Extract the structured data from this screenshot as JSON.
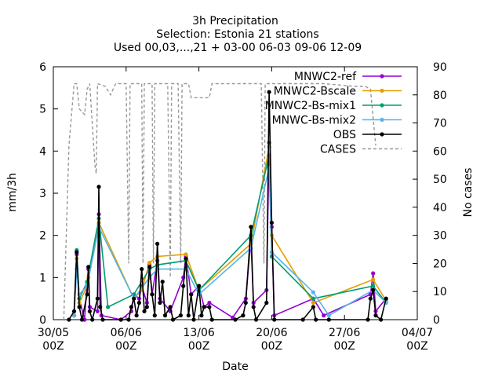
{
  "chart_data": {
    "type": "line",
    "title_lines": [
      "3h Precipitation",
      "Selection: Estonia     21 stations",
      "Used 00,03,...,21 + 03-00 06-03 09-06 12-09"
    ],
    "xlabel": "Date",
    "ylabel": "mm/3h",
    "y2label": "No cases",
    "xlim": [
      "2023-05-30",
      "2023-07-04"
    ],
    "ylim": [
      0,
      6
    ],
    "y2lim": [
      0,
      90
    ],
    "x_ticks": [
      {
        "date": "2023-05-30",
        "label": [
          "30/05",
          "00Z"
        ]
      },
      {
        "date": "2023-06-06",
        "label": [
          "06/06",
          "00Z"
        ]
      },
      {
        "date": "2023-06-13",
        "label": [
          "13/06",
          "00Z"
        ]
      },
      {
        "date": "2023-06-20",
        "label": [
          "20/06",
          "00Z"
        ]
      },
      {
        "date": "2023-06-27",
        "label": [
          "27/06",
          "00Z"
        ]
      },
      {
        "date": "2023-07-04",
        "label": [
          "04/07",
          "00Z"
        ]
      }
    ],
    "y_ticks": [
      "0",
      "1",
      "2",
      "3",
      "4",
      "5",
      "6"
    ],
    "y2_ticks": [
      "0",
      "10",
      "20",
      "30",
      "40",
      "50",
      "60",
      "70",
      "80",
      "90"
    ],
    "legend_position": "top-right",
    "series": [
      {
        "name": "MNWC2-ref",
        "color": "#9400d3",
        "axis": "y",
        "points": [
          [
            "2023-06-01T00",
            0.1
          ],
          [
            "2023-06-01T06",
            1.55
          ],
          [
            "2023-06-01T12",
            0.5
          ],
          [
            "2023-06-02T00",
            0.0
          ],
          [
            "2023-06-02T06",
            0.9
          ],
          [
            "2023-06-02T09",
            1.2
          ],
          [
            "2023-06-02T12",
            0.3
          ],
          [
            "2023-06-03T06",
            0.2
          ],
          [
            "2023-06-03T09",
            2.5
          ],
          [
            "2023-06-03T15",
            0.1
          ],
          [
            "2023-06-05T12",
            0.0
          ],
          [
            "2023-06-06T12",
            0.2
          ],
          [
            "2023-06-06T18",
            0.6
          ],
          [
            "2023-06-07T06",
            0.5
          ],
          [
            "2023-06-07T12",
            0.8
          ],
          [
            "2023-06-08T00",
            0.4
          ],
          [
            "2023-06-08T06",
            1.3
          ],
          [
            "2023-06-08T12",
            0.6
          ],
          [
            "2023-06-09T00",
            1.4
          ],
          [
            "2023-06-09T06",
            0.5
          ],
          [
            "2023-06-10T06",
            0.2
          ],
          [
            "2023-06-11T12",
            1.0
          ],
          [
            "2023-06-11T18",
            1.5
          ],
          [
            "2023-06-12T06",
            0.6
          ],
          [
            "2023-06-13T00",
            0.8
          ],
          [
            "2023-06-13T12",
            0.3
          ],
          [
            "2023-06-14T00",
            0.4
          ],
          [
            "2023-06-16T06",
            0.05
          ],
          [
            "2023-06-17T12",
            0.5
          ],
          [
            "2023-06-18T00",
            1.9
          ],
          [
            "2023-06-18T06",
            0.4
          ],
          [
            "2023-06-19T12",
            0.7
          ],
          [
            "2023-06-19T18",
            4.2
          ],
          [
            "2023-06-20T00",
            2.2
          ],
          [
            "2023-06-20T06",
            0.1
          ],
          [
            "2023-06-24T00",
            0.5
          ],
          [
            "2023-06-25T00",
            0.1
          ],
          [
            "2023-06-29T12",
            0.6
          ],
          [
            "2023-06-29T18",
            1.1
          ],
          [
            "2023-06-30T00",
            0.2
          ],
          [
            "2023-07-01T00",
            0.5
          ]
        ]
      },
      {
        "name": "MNWC2-Bscale",
        "color": "#e69f00",
        "axis": "y",
        "points": [
          [
            "2023-06-01T00",
            0.1
          ],
          [
            "2023-06-01T06",
            1.45
          ],
          [
            "2023-06-01T12",
            0.4
          ],
          [
            "2023-06-02T06",
            0.8
          ],
          [
            "2023-06-02T09",
            1.0
          ],
          [
            "2023-06-03T09",
            2.3
          ],
          [
            "2023-06-06T18",
            0.5
          ],
          [
            "2023-06-07T12",
            0.7
          ],
          [
            "2023-06-08T06",
            1.35
          ],
          [
            "2023-06-09T00",
            1.5
          ],
          [
            "2023-06-11T18",
            1.55
          ],
          [
            "2023-06-13T00",
            0.7
          ],
          [
            "2023-06-18T00",
            1.8
          ],
          [
            "2023-06-19T18",
            4.1
          ],
          [
            "2023-06-20T00",
            2.0
          ],
          [
            "2023-06-24T00",
            0.4
          ],
          [
            "2023-06-29T18",
            0.95
          ],
          [
            "2023-07-01T00",
            0.45
          ]
        ]
      },
      {
        "name": "MNWC2-Bs-mix1",
        "color": "#009e73",
        "axis": "y",
        "points": [
          [
            "2023-06-01T00",
            0.1
          ],
          [
            "2023-06-01T06",
            1.65
          ],
          [
            "2023-06-01T12",
            0.5
          ],
          [
            "2023-06-02T06",
            0.9
          ],
          [
            "2023-06-03T09",
            2.4
          ],
          [
            "2023-06-04T06",
            0.3
          ],
          [
            "2023-06-06T18",
            0.6
          ],
          [
            "2023-06-08T06",
            1.2
          ],
          [
            "2023-06-09T00",
            1.3
          ],
          [
            "2023-06-11T18",
            1.4
          ],
          [
            "2023-06-13T00",
            0.7
          ],
          [
            "2023-06-18T00",
            2.0
          ],
          [
            "2023-06-19T18",
            3.9
          ],
          [
            "2023-06-20T00",
            1.5
          ],
          [
            "2023-06-24T00",
            0.5
          ],
          [
            "2023-06-29T18",
            0.8
          ],
          [
            "2023-07-01T00",
            0.4
          ]
        ]
      },
      {
        "name": "MNWC-Bs-mix2",
        "color": "#56b4e9",
        "axis": "y",
        "points": [
          [
            "2023-06-01T00",
            0.1
          ],
          [
            "2023-06-01T06",
            1.2
          ],
          [
            "2023-06-01T12",
            0.6
          ],
          [
            "2023-06-02T06",
            0.8
          ],
          [
            "2023-06-03T09",
            2.2
          ],
          [
            "2023-06-06T18",
            0.5
          ],
          [
            "2023-06-08T06",
            1.0
          ],
          [
            "2023-06-09T00",
            1.2
          ],
          [
            "2023-06-11T18",
            1.2
          ],
          [
            "2023-06-13T00",
            0.6
          ],
          [
            "2023-06-18T00",
            1.7
          ],
          [
            "2023-06-19T18",
            3.6
          ],
          [
            "2023-06-20T00",
            1.6
          ],
          [
            "2023-06-24T00",
            0.65
          ],
          [
            "2023-06-25T12",
            0.1
          ],
          [
            "2023-06-29T18",
            0.7
          ],
          [
            "2023-07-01T00",
            0.4
          ]
        ]
      },
      {
        "name": "OBS",
        "color": "#000000",
        "axis": "y",
        "points": [
          [
            "2023-05-31T12",
            0.0
          ],
          [
            "2023-06-01T00",
            0.2
          ],
          [
            "2023-06-01T06",
            1.6
          ],
          [
            "2023-06-01T12",
            0.3
          ],
          [
            "2023-06-01T18",
            0.0
          ],
          [
            "2023-06-02T06",
            0.6
          ],
          [
            "2023-06-02T09",
            1.25
          ],
          [
            "2023-06-02T12",
            0.2
          ],
          [
            "2023-06-02T18",
            0.0
          ],
          [
            "2023-06-03T06",
            0.5
          ],
          [
            "2023-06-03T09",
            3.15
          ],
          [
            "2023-06-03T12",
            0.3
          ],
          [
            "2023-06-03T18",
            0.0
          ],
          [
            "2023-06-05T12",
            0.0
          ],
          [
            "2023-06-06T06",
            0.0
          ],
          [
            "2023-06-06T12",
            0.3
          ],
          [
            "2023-06-06T18",
            0.5
          ],
          [
            "2023-06-07T00",
            0.1
          ],
          [
            "2023-06-07T06",
            0.4
          ],
          [
            "2023-06-07T12",
            1.2
          ],
          [
            "2023-06-07T18",
            0.2
          ],
          [
            "2023-06-08T00",
            0.3
          ],
          [
            "2023-06-08T06",
            1.25
          ],
          [
            "2023-06-08T12",
            0.6
          ],
          [
            "2023-06-08T18",
            0.1
          ],
          [
            "2023-06-09T00",
            1.8
          ],
          [
            "2023-06-09T06",
            0.4
          ],
          [
            "2023-06-09T12",
            0.9
          ],
          [
            "2023-06-09T18",
            0.1
          ],
          [
            "2023-06-10T06",
            0.3
          ],
          [
            "2023-06-10T12",
            0.0
          ],
          [
            "2023-06-11T06",
            0.1
          ],
          [
            "2023-06-11T12",
            0.8
          ],
          [
            "2023-06-11T18",
            1.45
          ],
          [
            "2023-06-12T00",
            0.1
          ],
          [
            "2023-06-12T06",
            0.6
          ],
          [
            "2023-06-12T12",
            0.0
          ],
          [
            "2023-06-13T00",
            0.8
          ],
          [
            "2023-06-13T06",
            0.1
          ],
          [
            "2023-06-13T12",
            0.3
          ],
          [
            "2023-06-14T00",
            0.3
          ],
          [
            "2023-06-14T06",
            0.0
          ],
          [
            "2023-06-16T12",
            0.0
          ],
          [
            "2023-06-17T06",
            0.1
          ],
          [
            "2023-06-17T12",
            0.4
          ],
          [
            "2023-06-18T00",
            2.2
          ],
          [
            "2023-06-18T06",
            0.3
          ],
          [
            "2023-06-18T12",
            0.0
          ],
          [
            "2023-06-19T12",
            0.4
          ],
          [
            "2023-06-19T18",
            5.4
          ],
          [
            "2023-06-20T00",
            2.3
          ],
          [
            "2023-06-20T06",
            0.0
          ],
          [
            "2023-06-23T00",
            0.0
          ],
          [
            "2023-06-24T00",
            0.3
          ],
          [
            "2023-06-24T06",
            0.0
          ],
          [
            "2023-06-25T12",
            0.0
          ],
          [
            "2023-06-29T06",
            0.0
          ],
          [
            "2023-06-29T12",
            0.5
          ],
          [
            "2023-06-29T18",
            0.7
          ],
          [
            "2023-06-30T00",
            0.1
          ],
          [
            "2023-06-30T12",
            0.0
          ],
          [
            "2023-07-01T00",
            0.5
          ]
        ]
      },
      {
        "name": "CASES",
        "color": "#999999",
        "axis": "y2",
        "dashed": true,
        "points": [
          [
            "2023-05-31T00",
            0
          ],
          [
            "2023-05-31T12",
            62
          ],
          [
            "2023-06-01T00",
            84
          ],
          [
            "2023-06-01T06",
            84
          ],
          [
            "2023-06-01T12",
            75
          ],
          [
            "2023-06-02T00",
            73
          ],
          [
            "2023-06-02T06",
            82
          ],
          [
            "2023-06-02T12",
            84
          ],
          [
            "2023-06-03T00",
            55
          ],
          [
            "2023-06-03T03",
            52
          ],
          [
            "2023-06-03T06",
            84
          ],
          [
            "2023-06-04T00",
            83
          ],
          [
            "2023-06-04T12",
            80
          ],
          [
            "2023-06-05T00",
            84
          ],
          [
            "2023-06-06T00",
            84
          ],
          [
            "2023-06-06T06",
            20
          ],
          [
            "2023-06-06T09",
            84
          ],
          [
            "2023-06-07T12",
            84
          ],
          [
            "2023-06-07T15",
            20
          ],
          [
            "2023-06-07T18",
            84
          ],
          [
            "2023-06-08T12",
            84
          ],
          [
            "2023-06-08T15",
            20
          ],
          [
            "2023-06-08T18",
            84
          ],
          [
            "2023-06-09T12",
            84
          ],
          [
            "2023-06-10T00",
            84
          ],
          [
            "2023-06-10T06",
            15
          ],
          [
            "2023-06-10T09",
            84
          ],
          [
            "2023-06-11T00",
            84
          ],
          [
            "2023-06-11T06",
            20
          ],
          [
            "2023-06-11T09",
            84
          ],
          [
            "2023-06-12T00",
            84
          ],
          [
            "2023-06-12T06",
            79
          ],
          [
            "2023-06-14T00",
            79
          ],
          [
            "2023-06-14T06",
            84
          ],
          [
            "2023-06-19T00",
            84
          ],
          [
            "2023-06-19T06",
            20
          ],
          [
            "2023-06-19T09",
            84
          ],
          [
            "2023-06-25T00",
            84
          ],
          [
            "2023-06-28T00",
            83
          ],
          [
            "2023-06-29T00",
            83
          ],
          [
            "2023-06-29T12",
            82
          ],
          [
            "2023-06-30T00",
            62
          ]
        ]
      }
    ]
  }
}
